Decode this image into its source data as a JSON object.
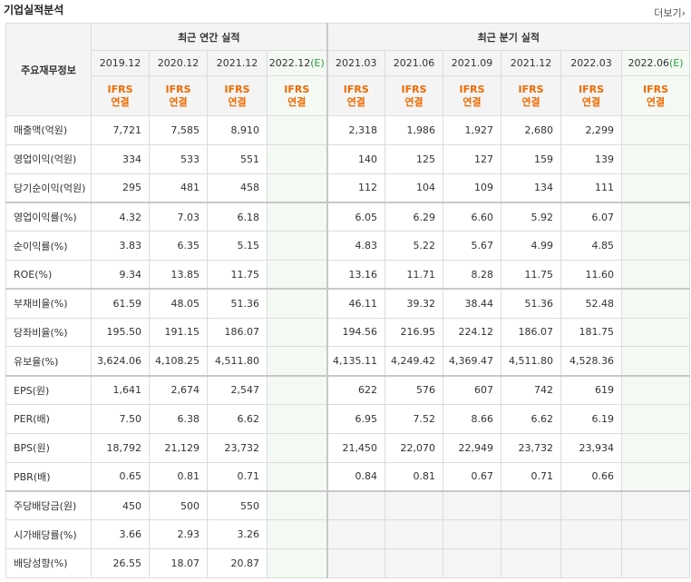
{
  "header": {
    "title": "기업실적분석",
    "more_label": "더보기"
  },
  "table": {
    "info_label": "주요재무정보",
    "annual_label": "최근 연간 실적",
    "quarter_label": "최근 분기 실적",
    "annual_periods": [
      "2019.12",
      "2020.12",
      "2021.12",
      "2022.12"
    ],
    "estimate_suffix": "(E)",
    "quarter_periods": [
      "2021.03",
      "2021.06",
      "2021.09",
      "2021.12",
      "2022.03",
      "2022.06"
    ],
    "ifrs_top": "IFRS",
    "ifrs_bottom": "연결",
    "rows": [
      {
        "label": "매출액(억원)",
        "annual": [
          "7,721",
          "7,585",
          "8,910",
          ""
        ],
        "quarter": [
          "2,318",
          "1,986",
          "1,927",
          "2,680",
          "2,299",
          ""
        ]
      },
      {
        "label": "영업이익(억원)",
        "annual": [
          "334",
          "533",
          "551",
          ""
        ],
        "quarter": [
          "140",
          "125",
          "127",
          "159",
          "139",
          ""
        ]
      },
      {
        "label": "당기순이익(억원)",
        "annual": [
          "295",
          "481",
          "458",
          ""
        ],
        "quarter": [
          "112",
          "104",
          "109",
          "134",
          "111",
          ""
        ]
      },
      {
        "label": "영업이익률(%)",
        "annual": [
          "4.32",
          "7.03",
          "6.18",
          ""
        ],
        "quarter": [
          "6.05",
          "6.29",
          "6.60",
          "5.92",
          "6.07",
          ""
        ]
      },
      {
        "label": "순이익률(%)",
        "annual": [
          "3.83",
          "6.35",
          "5.15",
          ""
        ],
        "quarter": [
          "4.83",
          "5.22",
          "5.67",
          "4.99",
          "4.85",
          ""
        ]
      },
      {
        "label": "ROE(%)",
        "annual": [
          "9.34",
          "13.85",
          "11.75",
          ""
        ],
        "quarter": [
          "13.16",
          "11.71",
          "8.28",
          "11.75",
          "11.60",
          ""
        ]
      },
      {
        "label": "부채비율(%)",
        "annual": [
          "61.59",
          "48.05",
          "51.36",
          ""
        ],
        "quarter": [
          "46.11",
          "39.32",
          "38.44",
          "51.36",
          "52.48",
          ""
        ]
      },
      {
        "label": "당좌비율(%)",
        "annual": [
          "195.50",
          "191.15",
          "186.07",
          ""
        ],
        "quarter": [
          "194.56",
          "216.95",
          "224.12",
          "186.07",
          "181.75",
          ""
        ]
      },
      {
        "label": "유보율(%)",
        "annual": [
          "3,624.06",
          "4,108.25",
          "4,511.80",
          ""
        ],
        "quarter": [
          "4,135.11",
          "4,249.42",
          "4,369.47",
          "4,511.80",
          "4,528.36",
          ""
        ]
      },
      {
        "label": "EPS(원)",
        "annual": [
          "1,641",
          "2,674",
          "2,547",
          ""
        ],
        "quarter": [
          "622",
          "576",
          "607",
          "742",
          "619",
          ""
        ]
      },
      {
        "label": "PER(배)",
        "annual": [
          "7.50",
          "6.38",
          "6.62",
          ""
        ],
        "quarter": [
          "6.95",
          "7.52",
          "8.66",
          "6.62",
          "6.19",
          ""
        ]
      },
      {
        "label": "BPS(원)",
        "annual": [
          "18,792",
          "21,129",
          "23,732",
          ""
        ],
        "quarter": [
          "21,450",
          "22,070",
          "22,949",
          "23,732",
          "23,934",
          ""
        ]
      },
      {
        "label": "PBR(배)",
        "annual": [
          "0.65",
          "0.81",
          "0.71",
          ""
        ],
        "quarter": [
          "0.84",
          "0.81",
          "0.67",
          "0.71",
          "0.66",
          ""
        ]
      },
      {
        "label": "주당배당금(원)",
        "annual": [
          "450",
          "500",
          "550",
          ""
        ],
        "quarter": [
          "",
          "",
          "",
          "",
          "",
          ""
        ]
      },
      {
        "label": "시가배당률(%)",
        "annual": [
          "3.66",
          "2.93",
          "3.26",
          ""
        ],
        "quarter": [
          "",
          "",
          "",
          "",
          "",
          ""
        ]
      },
      {
        "label": "배당성향(%)",
        "annual": [
          "26.55",
          "18.07",
          "20.87",
          ""
        ],
        "quarter": [
          "",
          "",
          "",
          "",
          "",
          ""
        ]
      }
    ]
  }
}
